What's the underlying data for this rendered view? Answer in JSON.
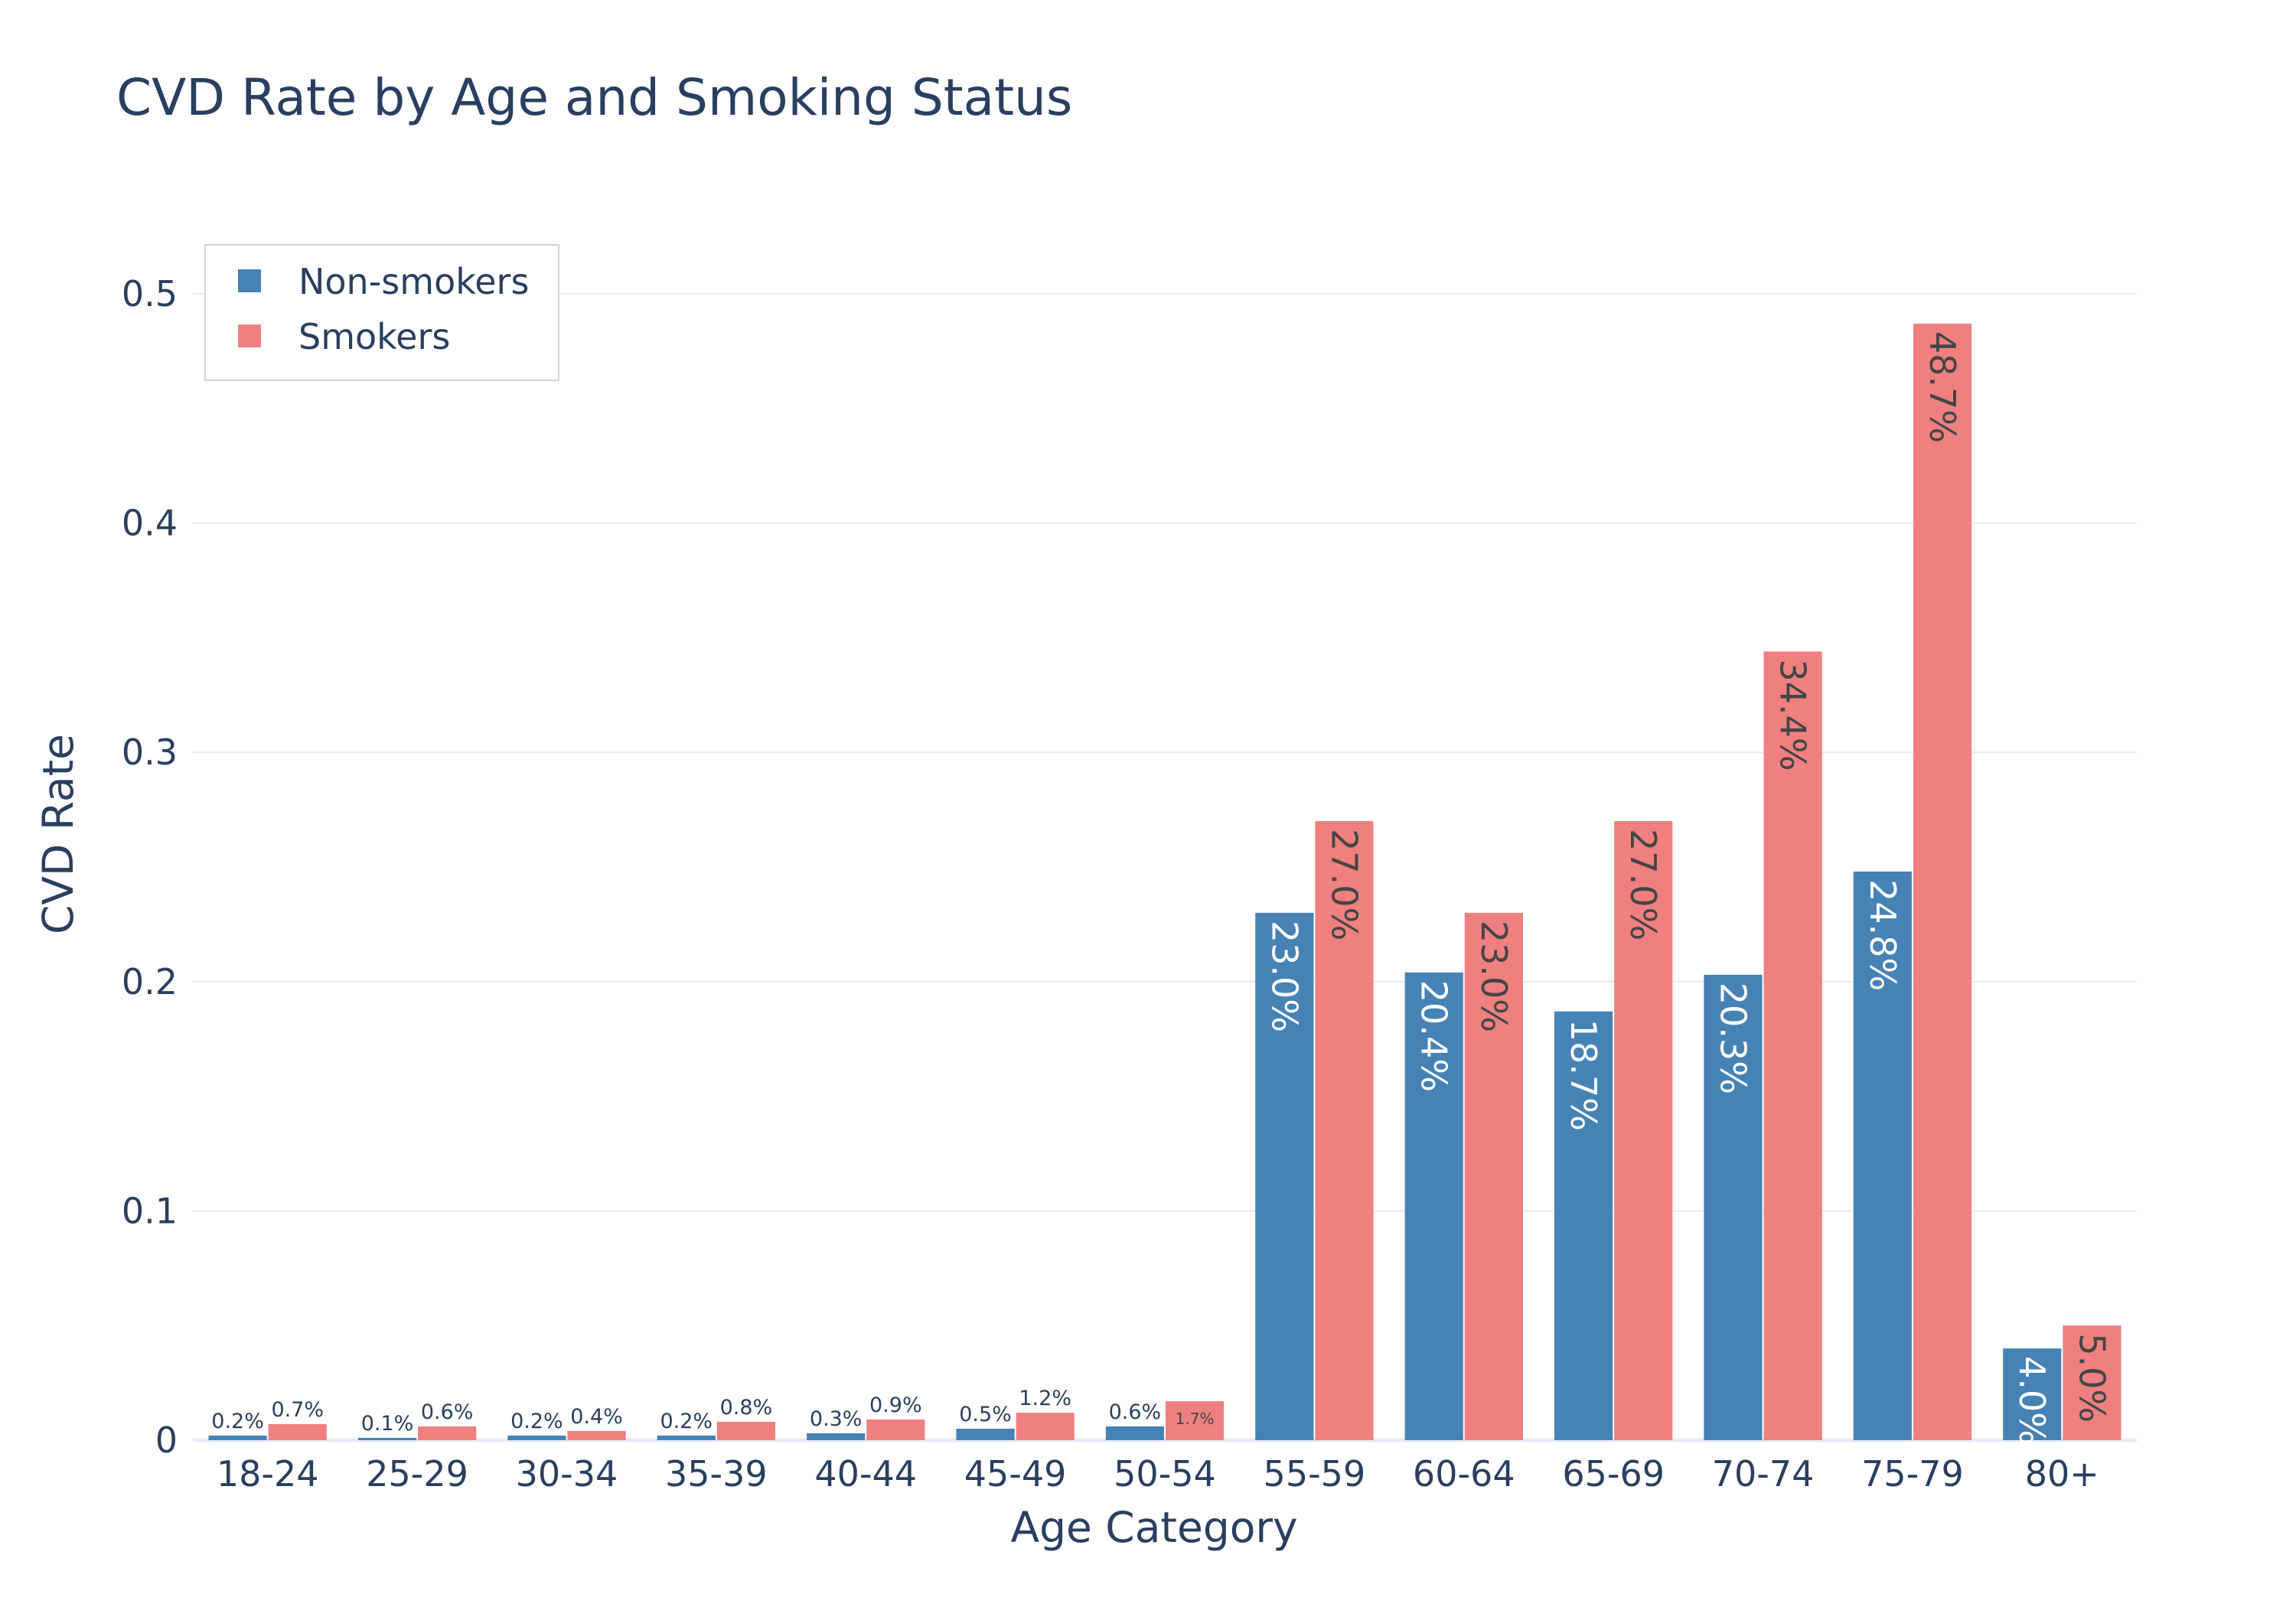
{
  "chart_data": {
    "type": "bar",
    "title": "CVD Rate by Age and Smoking Status",
    "xlabel": "Age Category",
    "ylabel": "CVD Rate",
    "ylim": [
      0,
      0.52
    ],
    "yticks": [
      0,
      0.1,
      0.2,
      0.3,
      0.4,
      0.5
    ],
    "ytick_labels": [
      "0",
      "0.1",
      "0.2",
      "0.3",
      "0.4",
      "0.5"
    ],
    "categories": [
      "18-24",
      "25-29",
      "30-34",
      "35-39",
      "40-44",
      "45-49",
      "50-54",
      "55-59",
      "60-64",
      "65-69",
      "70-74",
      "75-79",
      "80+"
    ],
    "grid": true,
    "legend_position": "top-left",
    "series": [
      {
        "name": "Non-smokers",
        "color": "#4682b4",
        "values": [
          0.002,
          0.001,
          0.002,
          0.002,
          0.003,
          0.005,
          0.006,
          0.23,
          0.204,
          0.187,
          0.203,
          0.248,
          0.04
        ],
        "labels": [
          "0.2%",
          "0.1%",
          "0.2%",
          "0.2%",
          "0.3%",
          "0.5%",
          "0.6%",
          "23.0%",
          "20.4%",
          "18.7%",
          "20.3%",
          "24.8%",
          "4.0%"
        ]
      },
      {
        "name": "Smokers",
        "color": "#f08080",
        "values": [
          0.007,
          0.006,
          0.004,
          0.008,
          0.009,
          0.012,
          0.017,
          0.27,
          0.23,
          0.27,
          0.344,
          0.487,
          0.05
        ],
        "labels": [
          "0.7%",
          "0.6%",
          "0.4%",
          "0.8%",
          "0.9%",
          "1.2%",
          "1.7%",
          "27.0%",
          "23.0%",
          "27.0%",
          "34.4%",
          "48.7%",
          "5.0%"
        ]
      }
    ]
  }
}
